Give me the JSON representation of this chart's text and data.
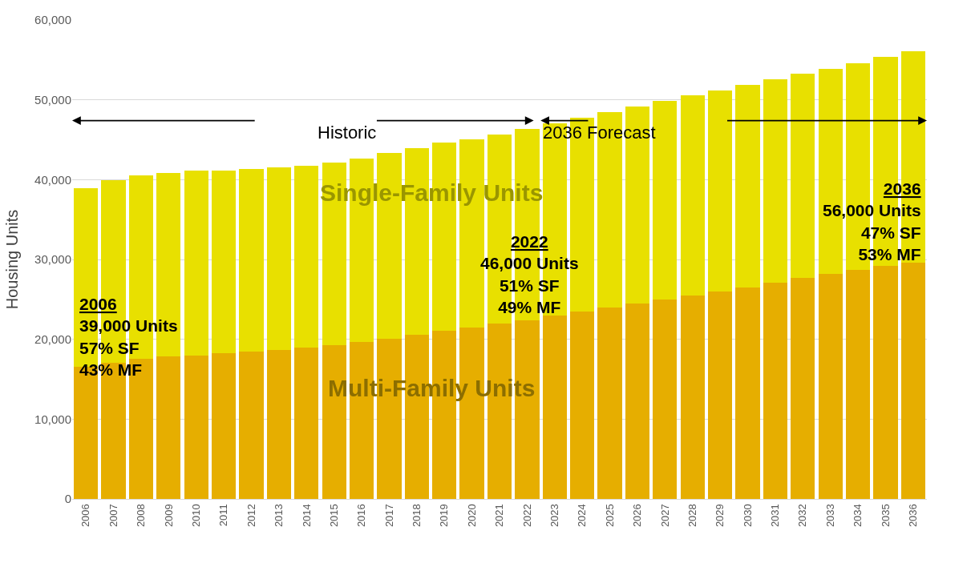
{
  "chart_data": {
    "type": "bar",
    "stacked": true,
    "ylabel": "Housing Units",
    "categories": [
      "2006",
      "2007",
      "2008",
      "2009",
      "2010",
      "2011",
      "2012",
      "2013",
      "2014",
      "2015",
      "2016",
      "2017",
      "2018",
      "2019",
      "2020",
      "2021",
      "2022",
      "2023",
      "2024",
      "2025",
      "2026",
      "2027",
      "2028",
      "2029",
      "2030",
      "2031",
      "2032",
      "2033",
      "2034",
      "2035",
      "2036"
    ],
    "series": [
      {
        "name": "Multi-Family Units",
        "color": "#e6ae00",
        "values": [
          16600,
          17100,
          17600,
          17900,
          18000,
          18300,
          18500,
          18700,
          19000,
          19300,
          19700,
          20100,
          20600,
          21100,
          21500,
          22000,
          22400,
          23000,
          23500,
          24000,
          24500,
          25000,
          25500,
          26000,
          26500,
          27100,
          27700,
          28200,
          28700,
          29200,
          29600
        ]
      },
      {
        "name": "Single-Family Units",
        "color": "#e8e000",
        "values": [
          22300,
          22800,
          22900,
          22900,
          23100,
          22800,
          22800,
          22800,
          22700,
          22800,
          22900,
          23200,
          23300,
          23500,
          23600,
          23700,
          24000,
          24100,
          24300,
          24500,
          24700,
          24900,
          25100,
          25200,
          25400,
          25500,
          25600,
          25700,
          25900,
          26200,
          26500
        ]
      }
    ],
    "ylim": [
      0,
      60000
    ],
    "yticks": [
      0,
      {
        "value": 10000,
        "label": "10,000"
      },
      {
        "value": 20000,
        "label": "20,000"
      },
      {
        "value": 30000,
        "label": "30,000"
      },
      {
        "value": 40000,
        "label": "40,000"
      },
      {
        "value": 50000,
        "label": "50,000"
      },
      {
        "value": 60000,
        "label": "60,000"
      }
    ],
    "grid": "y",
    "legend": false,
    "annotations": [
      "Historic",
      "2036 Forecast",
      "2006\n39,000 Units\n57% SF\n43% MF",
      "2022\n46,000 Units\n51% SF\n49% MF",
      "2036\n56,000 Units\n47% SF\n53% MF"
    ]
  }
}
